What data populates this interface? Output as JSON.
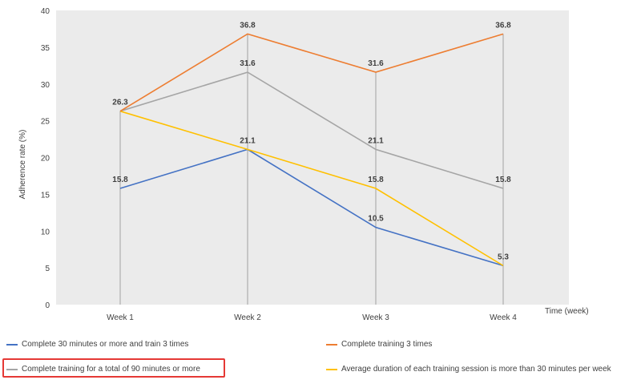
{
  "chart_data": {
    "type": "line",
    "categories": [
      "Week 1",
      "Week 2",
      "Week 3",
      "Week 4"
    ],
    "xlabel": "Time (week)",
    "ylabel": "Adherence  rate  (%)",
    "ylim": [
      0,
      40
    ],
    "yticks": [
      "0",
      "5",
      "10",
      "15",
      "20",
      "25",
      "30",
      "35",
      "40"
    ],
    "grid": "vertical drop lines at each week",
    "legend_position": "bottom",
    "plot_background": "#ebebeb",
    "series": [
      {
        "name": "Complete 30 minutes or more and train 3 times",
        "color": "#4472c4",
        "values": [
          15.8,
          21.1,
          10.5,
          5.3
        ],
        "labels": [
          "15.8",
          "21.1",
          "10.5",
          ""
        ]
      },
      {
        "name": "Complete training 3 times",
        "color": "#ed7d31",
        "values": [
          26.3,
          36.8,
          31.6,
          36.8
        ],
        "labels": [
          "26.3",
          "36.8",
          "31.6",
          "36.8"
        ]
      },
      {
        "name": "Complete training for a total of 90 minutes or more",
        "color": "#a5a5a5",
        "values": [
          26.3,
          31.6,
          21.1,
          15.8
        ],
        "labels": [
          "",
          "31.6",
          "21.1",
          "15.8"
        ]
      },
      {
        "name": "Average duration of each training session is more than 30 minutes per week",
        "color": "#ffc000",
        "values": [
          26.3,
          21.1,
          15.8,
          5.3
        ],
        "labels": [
          "",
          "",
          "15.8",
          "5.3"
        ]
      }
    ]
  },
  "legend": {
    "item1": "Complete 30 minutes or more and train 3 times",
    "item2": "Complete training 3 times",
    "item3": "Complete training for a total of 90 minutes or more",
    "item4": "Average duration of each training session is more than 30 minutes per week",
    "highlighted": "Complete training for a total of 90 minutes or more",
    "highlight_color": "#e53935"
  }
}
